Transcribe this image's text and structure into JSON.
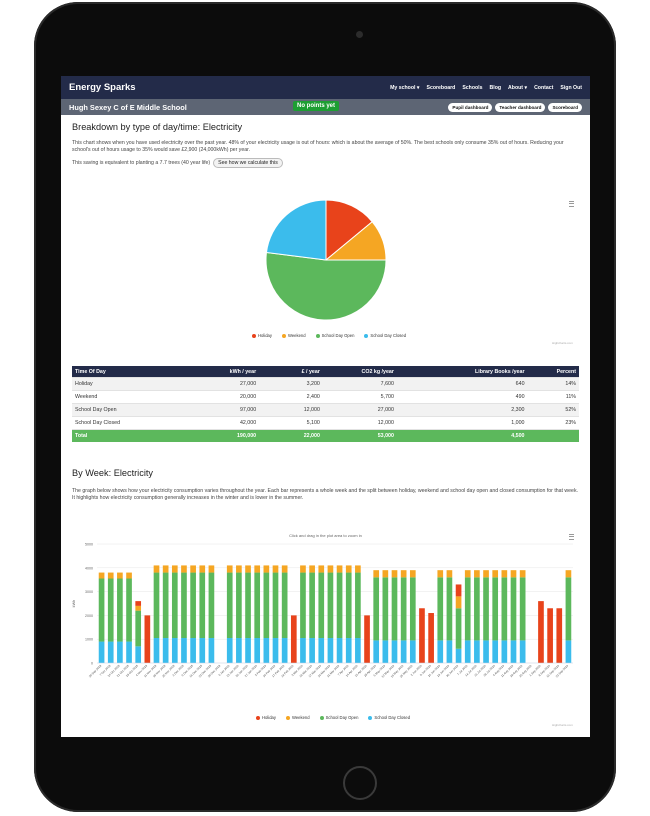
{
  "nav": {
    "brand": "Energy Sparks",
    "links": [
      "My school ▾",
      "Scoreboard",
      "Schools",
      "Blog",
      "About ▾",
      "Contact",
      "Sign Out"
    ]
  },
  "subbar": {
    "school_name": "Hugh Sexey C of E Middle School",
    "points_badge": "No points yet",
    "buttons": [
      "Pupil dashboard",
      "Teacher dashboard",
      "Scoreboard"
    ]
  },
  "breakdown": {
    "title": "Breakdown by type of day/time: Electricity",
    "description": "This chart shows when you have used electricity over the past year. 48% of your electricity usage is out of hours: which is about the average of 50%. The best schools only consume 35% out of hours. Reducing your school's out of hours usage to 35% would save £2,900 (24,000kWh) per year.",
    "saving_text": "This saving is equivalent to planting a 7.7 trees (40 year life)",
    "calc_button": "See how we calculate this"
  },
  "pie_chart": {
    "chart_data": {
      "type": "pie",
      "labels": [
        "Holiday",
        "Weekend",
        "School Day Open",
        "School Day Closed"
      ],
      "values": [
        14,
        11,
        52,
        23
      ],
      "colors": [
        "#e8431b",
        "#f5a623",
        "#5cb85c",
        "#3bbcec"
      ]
    },
    "credits": "Highcharts.com"
  },
  "table": {
    "headers": [
      "Time Of Day",
      "kWh / year",
      "£ / year",
      "CO2 kg /year",
      "Library Books /year",
      "Percent"
    ],
    "rows": [
      [
        "Holiday",
        "27,000",
        "3,200",
        "7,600",
        "640",
        "14%"
      ],
      [
        "Weekend",
        "20,000",
        "2,400",
        "5,700",
        "490",
        "11%"
      ],
      [
        "School Day Open",
        "97,000",
        "12,000",
        "27,000",
        "2,300",
        "52%"
      ],
      [
        "School Day Closed",
        "42,000",
        "5,100",
        "12,000",
        "1,000",
        "23%"
      ]
    ],
    "total": [
      "Total",
      "190,000",
      "22,000",
      "53,000",
      "4,500",
      ""
    ]
  },
  "weekly": {
    "title": "By Week: Electricity",
    "description": "The graph below shows how your electricity consumption varies throughout the year. Each bar represents a whole week and the split between holiday, weekend and school day open and closed consumption for that week. It highlights how electricity consumption generally increases in the winter and is lower in the summer.",
    "zoom_hint": "Click and drag in the plot area to zoom in",
    "credits": "Highcharts.com",
    "chart_data": {
      "type": "bar",
      "stacked": true,
      "ylabel": "kWh",
      "ylim": [
        0,
        5000
      ],
      "yticks": [
        "0",
        "1000",
        "2000",
        "3000",
        "4000",
        "5000"
      ],
      "x_labels": [
        "30 Sep 2018",
        "7 Oct 2018",
        "14 Oct 2018",
        "21 Oct 2018",
        "28 Oct 2018",
        "4 Nov 2018",
        "11 Nov 2018",
        "18 Nov 2018",
        "25 Nov 2018",
        "2 Dec 2018",
        "9 Dec 2018",
        "16 Dec 2018",
        "23 Dec 2018",
        "30 Dec 2018",
        "6 Jan 2019",
        "13 Jan 2019",
        "20 Jan 2019",
        "27 Jan 2019",
        "3 Feb 2019",
        "10 Feb 2019",
        "17 Feb 2019",
        "24 Feb 2019",
        "3 Mar 2019",
        "10 Mar 2019",
        "17 Mar 2019",
        "24 Mar 2019",
        "31 Mar 2019",
        "7 Apr 2019",
        "14 Apr 2019",
        "21 Apr 2019",
        "28 Apr 2019",
        "5 May 2019",
        "12 May 2019",
        "19 May 2019",
        "26 May 2019",
        "2 Jun 2019",
        "9 Jun 2019",
        "16 Jun 2019",
        "23 Jun 2019",
        "30 Jun 2019",
        "7 Jul 2019",
        "14 Jul 2019",
        "21 Jul 2019",
        "28 Jul 2019",
        "4 Aug 2019",
        "11 Aug 2019",
        "18 Aug 2019",
        "25 Aug 2019",
        "1 Sep 2019",
        "8 Sep 2019",
        "15 Sep 2019",
        "22 Sep 2019"
      ],
      "series": [
        {
          "name": "Holiday",
          "color": "#e8431b",
          "values": [
            0,
            0,
            0,
            0,
            200,
            2000,
            0,
            0,
            0,
            0,
            0,
            0,
            0,
            0,
            0,
            0,
            0,
            0,
            0,
            0,
            0,
            2000,
            0,
            0,
            0,
            0,
            0,
            0,
            0,
            2000,
            0,
            0,
            0,
            0,
            0,
            2300,
            2100,
            0,
            0,
            500,
            0,
            0,
            0,
            0,
            0,
            0,
            0,
            0,
            2600,
            2300,
            2300,
            0
          ]
        },
        {
          "name": "Weekend",
          "color": "#f5a623",
          "values": [
            250,
            250,
            250,
            250,
            200,
            0,
            300,
            300,
            300,
            300,
            300,
            300,
            300,
            0,
            300,
            300,
            300,
            300,
            300,
            300,
            300,
            0,
            300,
            300,
            300,
            300,
            300,
            300,
            300,
            0,
            300,
            300,
            300,
            300,
            300,
            0,
            0,
            300,
            300,
            500,
            300,
            300,
            300,
            300,
            300,
            300,
            300,
            0,
            0,
            0,
            0,
            300
          ]
        },
        {
          "name": "School Day Open",
          "color": "#5cb85c",
          "values": [
            2650,
            2650,
            2650,
            2650,
            1500,
            0,
            2750,
            2750,
            2750,
            2750,
            2750,
            2750,
            2750,
            0,
            2750,
            2750,
            2750,
            2750,
            2750,
            2750,
            2750,
            0,
            2750,
            2750,
            2750,
            2750,
            2750,
            2750,
            2750,
            0,
            2650,
            2650,
            2650,
            2650,
            2650,
            0,
            0,
            2650,
            2650,
            1700,
            2650,
            2650,
            2650,
            2650,
            2650,
            2650,
            2650,
            0,
            0,
            0,
            0,
            2650
          ]
        },
        {
          "name": "School Day Closed",
          "color": "#3bbcec",
          "values": [
            900,
            900,
            900,
            900,
            700,
            0,
            1050,
            1050,
            1050,
            1050,
            1050,
            1050,
            1050,
            0,
            1050,
            1050,
            1050,
            1050,
            1050,
            1050,
            1050,
            0,
            1050,
            1050,
            1050,
            1050,
            1050,
            1050,
            1050,
            0,
            950,
            950,
            950,
            950,
            950,
            0,
            0,
            950,
            950,
            600,
            950,
            950,
            950,
            950,
            950,
            950,
            950,
            0,
            0,
            0,
            0,
            950
          ]
        }
      ]
    }
  }
}
